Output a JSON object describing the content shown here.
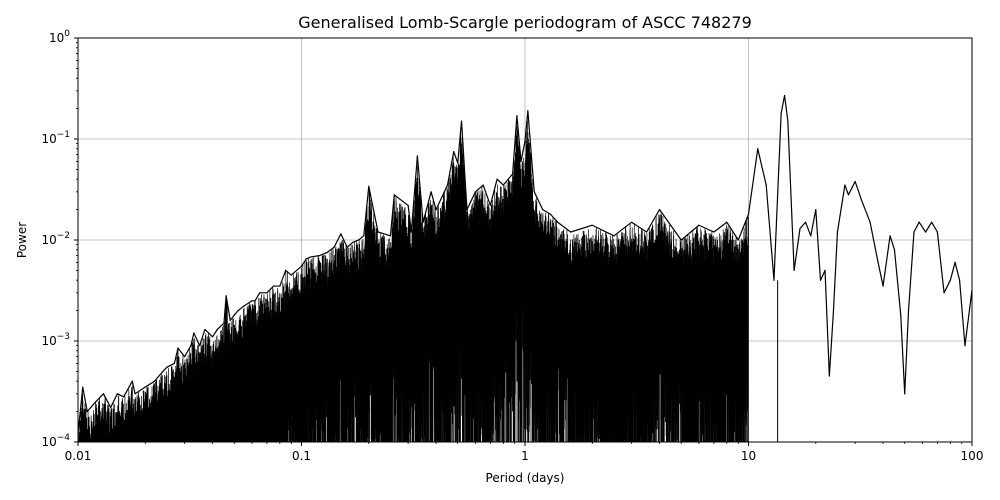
{
  "chart_data": {
    "type": "line",
    "title": "Generalised Lomb-Scargle periodogram of ASCC 748279",
    "xlabel": "Period (days)",
    "ylabel": "Power",
    "xscale": "log",
    "yscale": "log",
    "xlim": [
      0.01,
      100
    ],
    "ylim": [
      0.0001,
      1
    ],
    "grid": true,
    "line_color": "#000000",
    "x_ticks": [
      {
        "value": 0.01,
        "label": "0.01"
      },
      {
        "value": 0.1,
        "label": "0.1"
      },
      {
        "value": 1,
        "label": "1"
      },
      {
        "value": 10,
        "label": "10"
      },
      {
        "value": 100,
        "label": "100"
      }
    ],
    "y_ticks": [
      {
        "value": 0.0001,
        "base": "10",
        "exp": "−4"
      },
      {
        "value": 0.001,
        "base": "10",
        "exp": "−3"
      },
      {
        "value": 0.01,
        "base": "10",
        "exp": "−2"
      },
      {
        "value": 0.1,
        "base": "10",
        "exp": "−1"
      },
      {
        "value": 1,
        "base": "10",
        "exp": "0"
      }
    ],
    "series": [
      {
        "points": [
          [
            0.01,
            0.00012
          ],
          [
            0.0105,
            0.00035
          ],
          [
            0.011,
            0.0002
          ],
          [
            0.012,
            0.00025
          ],
          [
            0.013,
            0.0003
          ],
          [
            0.014,
            0.00022
          ],
          [
            0.015,
            0.0003
          ],
          [
            0.016,
            0.00028
          ],
          [
            0.0175,
            0.0004
          ],
          [
            0.018,
            0.0003
          ],
          [
            0.02,
            0.00035
          ],
          [
            0.022,
            0.0004
          ],
          [
            0.024,
            0.0005
          ],
          [
            0.025,
            0.00055
          ],
          [
            0.027,
            0.0006
          ],
          [
            0.028,
            0.00085
          ],
          [
            0.03,
            0.0007
          ],
          [
            0.032,
            0.0009
          ],
          [
            0.033,
            0.0012
          ],
          [
            0.035,
            0.0009
          ],
          [
            0.037,
            0.0013
          ],
          [
            0.04,
            0.0011
          ],
          [
            0.042,
            0.0013
          ],
          [
            0.045,
            0.0015
          ],
          [
            0.046,
            0.0028
          ],
          [
            0.048,
            0.0016
          ],
          [
            0.05,
            0.0018
          ],
          [
            0.052,
            0.002
          ],
          [
            0.055,
            0.0022
          ],
          [
            0.06,
            0.0025
          ],
          [
            0.062,
            0.0025
          ],
          [
            0.065,
            0.003
          ],
          [
            0.07,
            0.003
          ],
          [
            0.075,
            0.0035
          ],
          [
            0.08,
            0.0035
          ],
          [
            0.085,
            0.005
          ],
          [
            0.09,
            0.0045
          ],
          [
            0.1,
            0.0055
          ],
          [
            0.105,
            0.0065
          ],
          [
            0.11,
            0.0068
          ],
          [
            0.12,
            0.007
          ],
          [
            0.13,
            0.0075
          ],
          [
            0.14,
            0.0085
          ],
          [
            0.15,
            0.0115
          ],
          [
            0.16,
            0.0085
          ],
          [
            0.17,
            0.0095
          ],
          [
            0.18,
            0.01
          ],
          [
            0.19,
            0.011
          ],
          [
            0.2,
            0.034
          ],
          [
            0.22,
            0.012
          ],
          [
            0.25,
            0.011
          ],
          [
            0.26,
            0.028
          ],
          [
            0.3,
            0.022
          ],
          [
            0.31,
            0.012
          ],
          [
            0.33,
            0.068
          ],
          [
            0.35,
            0.015
          ],
          [
            0.38,
            0.03
          ],
          [
            0.4,
            0.02
          ],
          [
            0.45,
            0.035
          ],
          [
            0.48,
            0.075
          ],
          [
            0.5,
            0.058
          ],
          [
            0.52,
            0.15
          ],
          [
            0.55,
            0.02
          ],
          [
            0.6,
            0.03
          ],
          [
            0.65,
            0.035
          ],
          [
            0.7,
            0.022
          ],
          [
            0.75,
            0.04
          ],
          [
            0.8,
            0.035
          ],
          [
            0.88,
            0.045
          ],
          [
            0.92,
            0.17
          ],
          [
            0.96,
            0.06
          ],
          [
            1.0,
            0.095
          ],
          [
            1.03,
            0.19
          ],
          [
            1.1,
            0.03
          ],
          [
            1.2,
            0.02
          ],
          [
            1.3,
            0.018
          ],
          [
            1.4,
            0.015
          ],
          [
            1.6,
            0.012
          ],
          [
            1.8,
            0.013
          ],
          [
            2.0,
            0.014
          ],
          [
            2.5,
            0.011
          ],
          [
            3.0,
            0.015
          ],
          [
            3.5,
            0.012
          ],
          [
            4.0,
            0.02
          ],
          [
            5.0,
            0.01
          ],
          [
            6.0,
            0.014
          ],
          [
            7.0,
            0.012
          ],
          [
            8.0,
            0.015
          ],
          [
            9.0,
            0.01
          ],
          [
            10.0,
            0.018
          ],
          [
            11.0,
            0.08
          ],
          [
            12.0,
            0.035
          ],
          [
            13.0,
            0.004
          ],
          [
            14.0,
            0.18
          ],
          [
            14.5,
            0.27
          ],
          [
            15.0,
            0.15
          ],
          [
            16.0,
            0.005
          ],
          [
            17.0,
            0.013
          ],
          [
            18.0,
            0.015
          ],
          [
            19.0,
            0.011
          ],
          [
            20.0,
            0.02
          ],
          [
            21.0,
            0.004
          ],
          [
            22.0,
            0.005
          ],
          [
            23.0,
            0.00045
          ],
          [
            24.0,
            0.002
          ],
          [
            25.0,
            0.012
          ],
          [
            27.0,
            0.035
          ],
          [
            28.0,
            0.028
          ],
          [
            30.0,
            0.038
          ],
          [
            32.0,
            0.025
          ],
          [
            35.0,
            0.015
          ],
          [
            38.0,
            0.006
          ],
          [
            40.0,
            0.0035
          ],
          [
            43.0,
            0.011
          ],
          [
            45.0,
            0.008
          ],
          [
            48.0,
            0.0018
          ],
          [
            50.0,
            0.0003
          ],
          [
            52.0,
            0.002
          ],
          [
            55.0,
            0.012
          ],
          [
            58.0,
            0.015
          ],
          [
            62.0,
            0.012
          ],
          [
            66.0,
            0.015
          ],
          [
            70.0,
            0.012
          ],
          [
            75.0,
            0.003
          ],
          [
            80.0,
            0.004
          ],
          [
            84.0,
            0.006
          ],
          [
            88.0,
            0.004
          ],
          [
            93.0,
            0.0009
          ],
          [
            100.0,
            0.0032
          ]
        ]
      }
    ]
  }
}
